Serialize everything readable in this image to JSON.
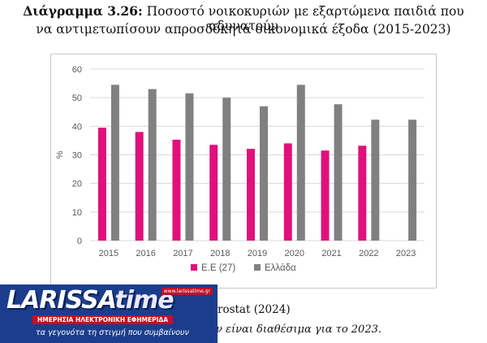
{
  "title": {
    "lead": "Διάγραμμα 3.26:",
    "line1": "Ποσοστό νοικοκυριών με εξαρτώμενα παιδιά που αδυνατούν",
    "line2": "να αντιμετωπίσουν απροσδόκητα οικονομικά έξοδα (2015-2023)"
  },
  "source_fragment": "rostat (2024)",
  "note_fragment": "ν είναι διαθέσιμα για το 2023.",
  "banner": {
    "brand": "LARISSA",
    "brand_accent": "time",
    "url": "www.larissatime.gr",
    "strap": "ΗΜΕΡΗΣΙΑ ΗΛΕΚΤΡΟΝΙΚΗ ΕΦΗΜΕΡΙΔΑ",
    "slogan": "τα γεγονότα τη στιγμή που συμβαίνουν"
  },
  "chart_data": {
    "type": "bar",
    "title": "Ποσοστό νοικοκυριών με εξαρτώμενα παιδιά που αδυνατούν να αντιμετωπίσουν απροσδόκητα οικονομικά έξοδα (2015-2023)",
    "categories": [
      "2015",
      "2016",
      "2017",
      "2018",
      "2019",
      "2020",
      "2021",
      "2022",
      "2023"
    ],
    "series": [
      {
        "name": "Ε.Ε (27)",
        "color": "#e0117a",
        "values": [
          39.5,
          38,
          35.3,
          33.5,
          32.1,
          34,
          31.5,
          33.2,
          null
        ]
      },
      {
        "name": "Ελλάδα",
        "color": "#808080",
        "values": [
          54.5,
          53,
          51.5,
          50,
          47,
          54.5,
          47.7,
          42.3,
          42.3
        ]
      }
    ],
    "xlabel": "",
    "ylabel": "%",
    "ylim": [
      0,
      60
    ],
    "yticks": [
      0,
      10,
      20,
      30,
      40,
      50,
      60
    ],
    "grid": true,
    "legend": "bottom-center"
  }
}
